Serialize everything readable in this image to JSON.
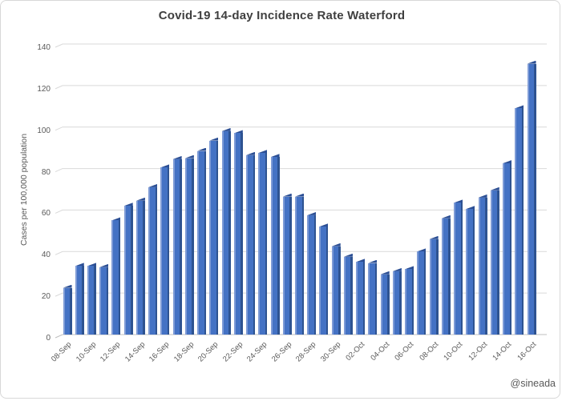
{
  "chart_data": {
    "type": "bar",
    "title": "Covid-19 14-day Incidence Rate Waterford",
    "xlabel": "",
    "ylabel": "Cases per 100,000 population",
    "ylim": [
      0,
      140
    ],
    "ytick_step": 20,
    "grid": true,
    "legend": false,
    "x_tick_interval": 2,
    "watermark": "@sineada",
    "categories": [
      "08-Sep",
      "09-Sep",
      "10-Sep",
      "11-Sep",
      "12-Sep",
      "13-Sep",
      "14-Sep",
      "15-Sep",
      "16-Sep",
      "17-Sep",
      "18-Sep",
      "19-Sep",
      "20-Sep",
      "21-Sep",
      "22-Sep",
      "23-Sep",
      "24-Sep",
      "25-Sep",
      "26-Sep",
      "27-Sep",
      "28-Sep",
      "29-Sep",
      "30-Sep",
      "01-Oct",
      "02-Oct",
      "03-Oct",
      "04-Oct",
      "05-Oct",
      "06-Oct",
      "07-Oct",
      "08-Oct",
      "09-Oct",
      "10-Oct",
      "11-Oct",
      "12-Oct",
      "13-Oct",
      "14-Oct",
      "15-Oct",
      "16-Oct"
    ],
    "values": [
      22.5,
      33,
      33,
      32.5,
      55,
      62,
      64.5,
      71,
      80.5,
      84.5,
      85,
      88.5,
      93.5,
      98,
      97,
      86.5,
      87.5,
      85.5,
      66.5,
      66.5,
      57.5,
      52,
      42.5,
      37.5,
      35,
      34.5,
      29,
      30.5,
      31.5,
      40,
      46,
      56,
      63.5,
      60.5,
      66,
      69.5,
      82.5,
      109,
      130.5
    ]
  },
  "colors": {
    "bar": "#4472c4",
    "bar_light_edge": "#7e9bd6",
    "bar_dark_edge": "#2e5391",
    "bar_top": "#2c4f94",
    "gridline": "#d9d9d9",
    "axis_line": "#bfbfbf",
    "tick_text": "#595959",
    "title_text": "#3f3f3f",
    "frame_border": "#d8d8d8"
  }
}
